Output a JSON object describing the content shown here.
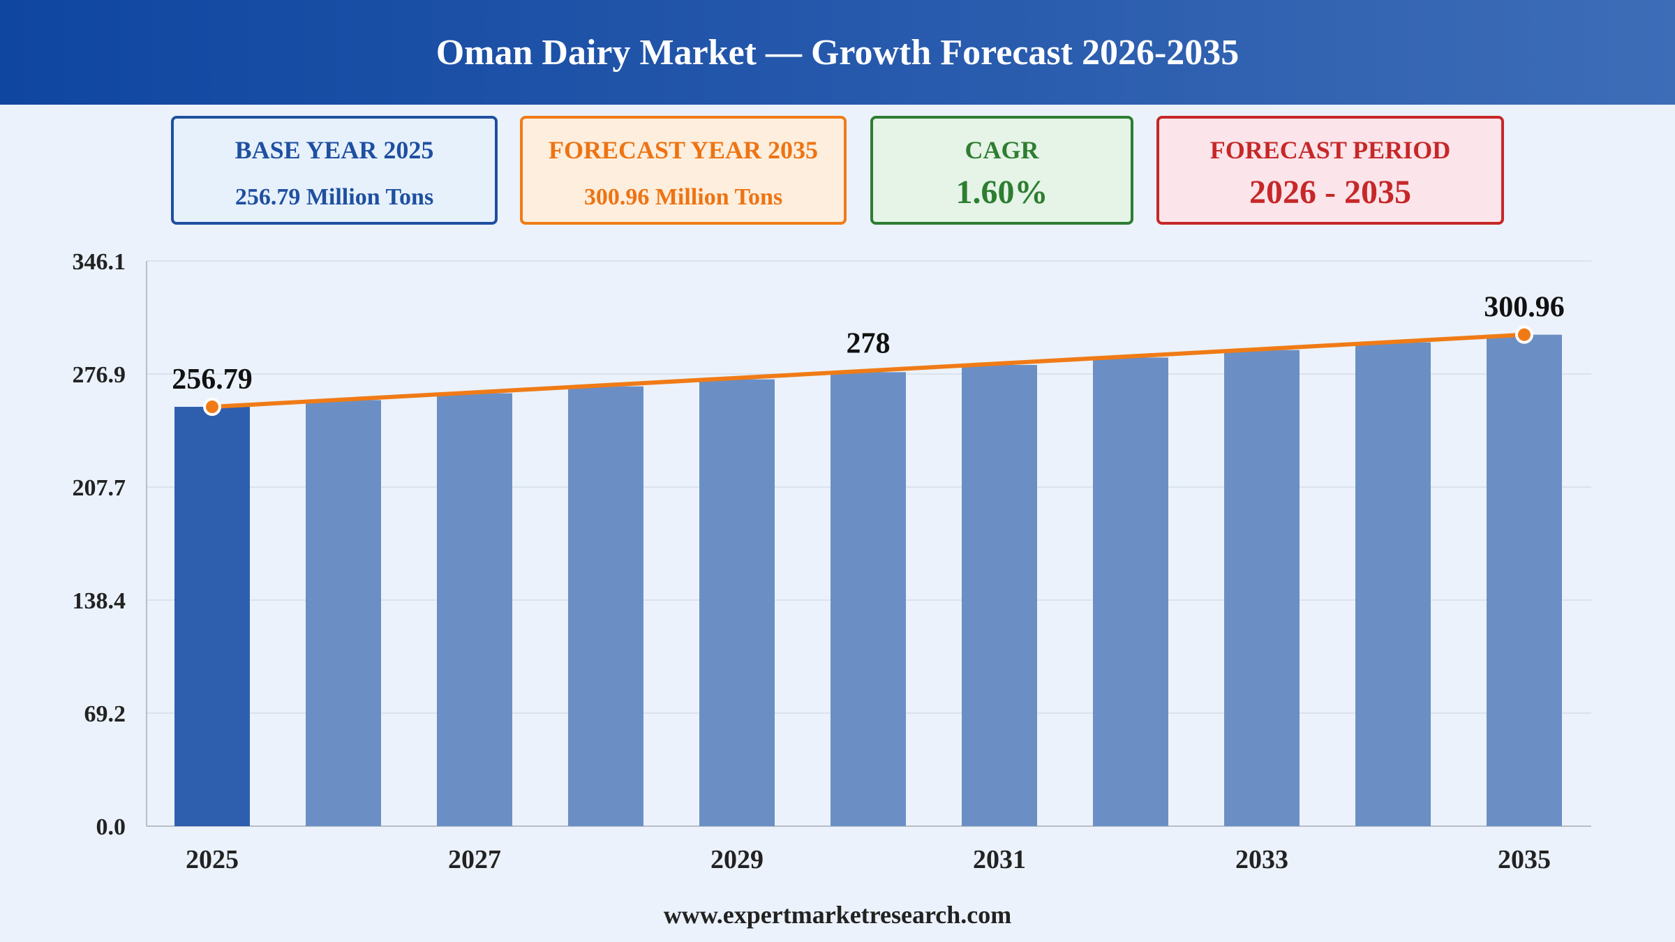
{
  "header": {
    "title": "Oman Dairy Market — Growth Forecast 2026-2035"
  },
  "cards": {
    "base": {
      "label": "BASE YEAR 2025",
      "value": "256.79 Million Tons"
    },
    "forecast": {
      "label": "FORECAST YEAR 2035",
      "value": "300.96 Million Tons"
    },
    "cagr": {
      "label": "CAGR",
      "value": "1.60%"
    },
    "period": {
      "label": "FORECAST PERIOD",
      "value": "2026 - 2035"
    }
  },
  "footer": {
    "website": "www.expertmarketresearch.com"
  },
  "colors": {
    "bar_base": "#2e5fae",
    "bar_forecast": "#6b8fc4",
    "trend_line": "#f07b16",
    "point_fill": "#f07b16",
    "grid": "#d5dde8",
    "axis": "#b8bec8",
    "text": "#222222"
  },
  "chart_data": {
    "type": "bar",
    "categories": [
      "2025",
      "2026",
      "2027",
      "2028",
      "2029",
      "2030",
      "2031",
      "2032",
      "2033",
      "2034",
      "2035"
    ],
    "values": [
      256.79,
      260.9,
      265.07,
      269.31,
      273.62,
      278.0,
      282.45,
      286.97,
      291.56,
      296.22,
      300.96
    ],
    "x_tick_labels": [
      "2025",
      "",
      "2027",
      "",
      "2029",
      "",
      "2031",
      "",
      "2033",
      "",
      "2035"
    ],
    "y_ticks": [
      "0.0",
      "69.2",
      "138.4",
      "207.7",
      "276.9",
      "346.1"
    ],
    "ylim": [
      0,
      346.1
    ],
    "overlay": "trend line from first to last value",
    "data_labels": [
      {
        "category": "2025",
        "text": "256.79"
      },
      {
        "category": "2030",
        "text": "278"
      },
      {
        "category": "2035",
        "text": "300.96"
      }
    ],
    "grid": true,
    "legend": "none",
    "title": "",
    "xlabel": "",
    "ylabel": ""
  }
}
